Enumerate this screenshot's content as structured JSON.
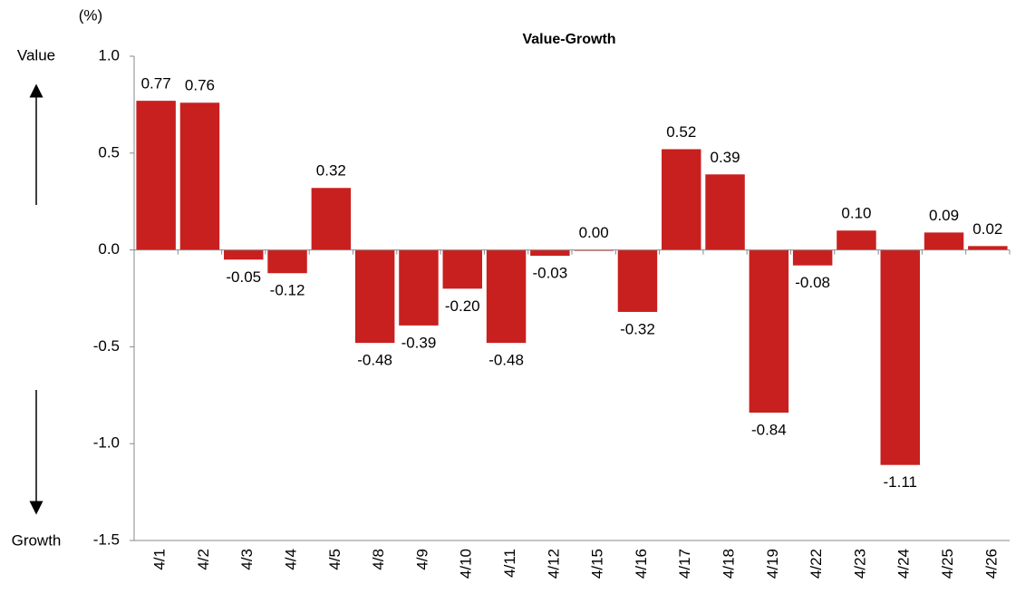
{
  "chart_data": {
    "type": "bar",
    "title": "Value-Growth",
    "y_unit": "(%)",
    "annotations": [
      "Value",
      "Growth"
    ],
    "categories": [
      "4/1",
      "4/2",
      "4/3",
      "4/4",
      "4/5",
      "4/8",
      "4/9",
      "4/10",
      "4/11",
      "4/12",
      "4/15",
      "4/16",
      "4/17",
      "4/18",
      "4/19",
      "4/22",
      "4/23",
      "4/24",
      "4/25",
      "4/26"
    ],
    "values": [
      0.77,
      0.76,
      -0.05,
      -0.12,
      0.32,
      -0.48,
      -0.39,
      -0.2,
      -0.48,
      -0.03,
      0,
      -0.32,
      0.52,
      0.39,
      -0.84,
      -0.08,
      0.1,
      -1.11,
      0.09,
      0.02
    ],
    "value_labels": [
      "0.77",
      "0.76",
      "-0.05",
      "-0.12",
      "0.32",
      "-0.48",
      "-0.39",
      "-0.20",
      "-0.48",
      "-0.03",
      "0.00",
      "-0.32",
      "0.52",
      "0.39",
      "-0.84",
      "-0.08",
      "0.10",
      "-1.11",
      "0.09",
      "0.02"
    ],
    "color": "#c8201f",
    "ylim": [
      -1.5,
      1.0
    ],
    "yticks": [
      {
        "value": -1.5,
        "label": "-1.5"
      },
      {
        "value": -1,
        "label": "-1.0"
      },
      -0.5,
      {
        "value": 0,
        "label": "0.0"
      },
      0.5,
      {
        "value": 1,
        "label": "1.0"
      }
    ]
  }
}
